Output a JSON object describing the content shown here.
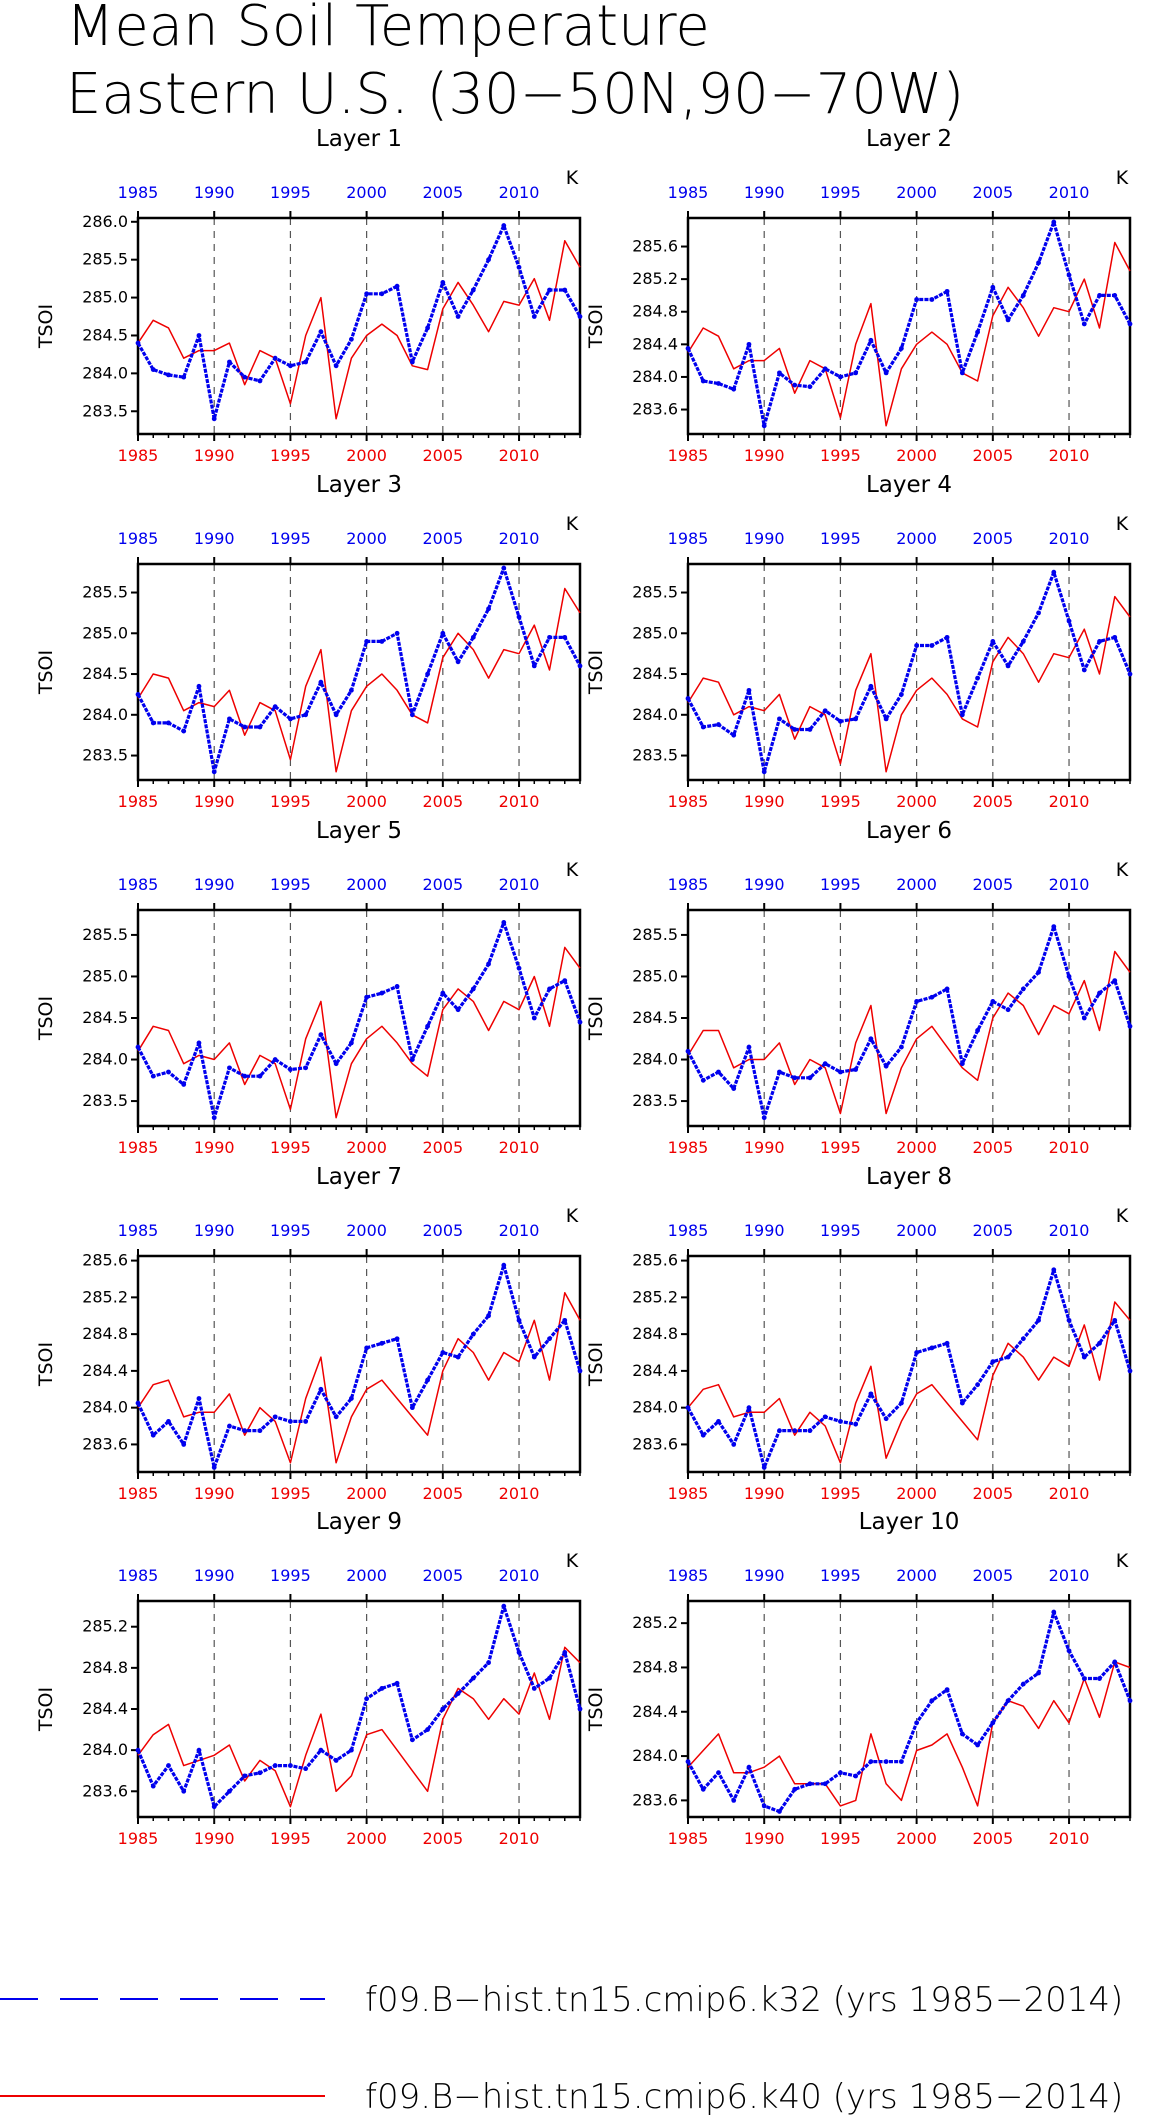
{
  "title_lines": [
    "Mean Soil Temperature",
    "Eastern U.S. (30−50N,90−70W)"
  ],
  "colors": {
    "blue": "#0000ee",
    "red": "#ee0000",
    "axis": "#000000",
    "grid": "#555555"
  },
  "legend": [
    {
      "label": "f09.B−hist.tn15.cmip6.k32 (yrs 1985−2014)",
      "color": "#0000ee",
      "style": "dashed"
    },
    {
      "label": "f09.B−hist.tn15.cmip6.k40 (yrs 1985−2014)",
      "color": "#ee0000",
      "style": "solid"
    }
  ],
  "chart_data": [
    {
      "type": "line",
      "title": "Layer 1",
      "ylabel": "TSOI",
      "unit": "K",
      "xlim": [
        1985,
        2014
      ],
      "x_ticks": [
        1985,
        1990,
        1995,
        2000,
        2005,
        2010
      ],
      "ylim": [
        283.2,
        286.05
      ],
      "y_ticks": [
        283.5,
        284.0,
        284.5,
        285.0,
        285.5,
        286.0
      ],
      "y_tick_labels": [
        "283.5",
        "284.0",
        "284.5",
        "285.0",
        "285.5",
        "286.0"
      ],
      "series": [
        {
          "color": "#0000ee",
          "values": [
            284.4,
            284.05,
            283.98,
            283.95,
            284.5,
            283.4,
            284.15,
            283.95,
            283.9,
            284.2,
            284.1,
            284.15,
            284.55,
            284.1,
            284.45,
            285.05,
            285.05,
            285.15,
            284.15,
            284.6,
            285.2,
            284.75,
            285.1,
            285.5,
            285.95,
            285.4,
            284.75,
            285.1,
            285.1,
            284.75
          ]
        },
        {
          "color": "#ee0000",
          "values": [
            284.4,
            284.7,
            284.6,
            284.2,
            284.3,
            284.3,
            284.4,
            283.85,
            284.3,
            284.2,
            283.6,
            284.5,
            285.0,
            283.4,
            284.2,
            284.5,
            284.65,
            284.5,
            284.1,
            284.05,
            284.85,
            285.2,
            284.9,
            284.55,
            284.95,
            284.9,
            285.25,
            284.7,
            285.75,
            285.4
          ]
        }
      ]
    },
    {
      "type": "line",
      "title": "Layer 2",
      "ylabel": "TSOI",
      "unit": "K",
      "xlim": [
        1985,
        2014
      ],
      "x_ticks": [
        1985,
        1990,
        1995,
        2000,
        2005,
        2010
      ],
      "ylim": [
        283.3,
        285.95
      ],
      "y_ticks": [
        283.6,
        284.0,
        284.4,
        284.8,
        285.2,
        285.6
      ],
      "y_tick_labels": [
        "283.6",
        "284.0",
        "284.4",
        "284.8",
        "285.2",
        "285.6"
      ],
      "series": [
        {
          "color": "#0000ee",
          "values": [
            284.35,
            283.95,
            283.92,
            283.85,
            284.4,
            283.4,
            284.05,
            283.9,
            283.88,
            284.1,
            284.0,
            284.05,
            284.45,
            284.05,
            284.35,
            284.95,
            284.95,
            285.05,
            284.05,
            284.55,
            285.1,
            284.7,
            285.0,
            285.4,
            285.9,
            285.25,
            284.65,
            285.0,
            285.0,
            284.65
          ]
        },
        {
          "color": "#ee0000",
          "values": [
            284.3,
            284.6,
            284.5,
            284.1,
            284.2,
            284.2,
            284.35,
            283.8,
            284.2,
            284.1,
            283.5,
            284.4,
            284.9,
            283.4,
            284.1,
            284.4,
            284.55,
            284.4,
            284.05,
            283.95,
            284.75,
            285.1,
            284.85,
            284.5,
            284.85,
            284.8,
            285.2,
            284.6,
            285.65,
            285.3
          ]
        }
      ]
    },
    {
      "type": "line",
      "title": "Layer 3",
      "ylabel": "TSOI",
      "unit": "K",
      "xlim": [
        1985,
        2014
      ],
      "x_ticks": [
        1985,
        1990,
        1995,
        2000,
        2005,
        2010
      ],
      "ylim": [
        283.2,
        285.85
      ],
      "y_ticks": [
        283.5,
        284.0,
        284.5,
        285.0,
        285.5
      ],
      "y_tick_labels": [
        "283.5",
        "284.0",
        "284.5",
        "285.0",
        "285.5"
      ],
      "series": [
        {
          "color": "#0000ee",
          "values": [
            284.25,
            283.9,
            283.9,
            283.8,
            284.35,
            283.3,
            283.95,
            283.85,
            283.85,
            284.1,
            283.95,
            284.0,
            284.4,
            284.0,
            284.3,
            284.9,
            284.9,
            285.0,
            284.0,
            284.5,
            285.0,
            284.65,
            284.95,
            285.3,
            285.8,
            285.2,
            284.6,
            284.95,
            284.95,
            284.6
          ]
        },
        {
          "color": "#ee0000",
          "values": [
            284.2,
            284.5,
            284.45,
            284.05,
            284.15,
            284.1,
            284.3,
            283.75,
            284.15,
            284.05,
            283.45,
            284.35,
            284.8,
            283.3,
            284.05,
            284.35,
            284.5,
            284.3,
            284.0,
            283.9,
            284.7,
            285.0,
            284.8,
            284.45,
            284.8,
            284.75,
            285.1,
            284.55,
            285.55,
            285.25
          ]
        }
      ]
    },
    {
      "type": "line",
      "title": "Layer 4",
      "ylabel": "TSOI",
      "unit": "K",
      "xlim": [
        1985,
        2014
      ],
      "x_ticks": [
        1985,
        1990,
        1995,
        2000,
        2005,
        2010
      ],
      "ylim": [
        283.2,
        285.85
      ],
      "y_ticks": [
        283.5,
        284.0,
        284.5,
        285.0,
        285.5
      ],
      "y_tick_labels": [
        "283.5",
        "284.0",
        "284.5",
        "285.0",
        "285.5"
      ],
      "series": [
        {
          "color": "#0000ee",
          "values": [
            284.2,
            283.85,
            283.88,
            283.75,
            284.3,
            283.3,
            283.95,
            283.82,
            283.82,
            284.05,
            283.92,
            283.95,
            284.35,
            283.95,
            284.25,
            284.85,
            284.85,
            284.95,
            284.0,
            284.45,
            284.9,
            284.6,
            284.9,
            285.25,
            285.75,
            285.15,
            284.55,
            284.9,
            284.95,
            284.5
          ]
        },
        {
          "color": "#ee0000",
          "values": [
            284.15,
            284.45,
            284.4,
            284.0,
            284.1,
            284.05,
            284.25,
            283.7,
            284.1,
            284.0,
            283.4,
            284.3,
            284.75,
            283.3,
            284.0,
            284.3,
            284.45,
            284.25,
            283.95,
            283.85,
            284.65,
            284.95,
            284.75,
            284.4,
            284.75,
            284.7,
            285.05,
            284.5,
            285.45,
            285.2
          ]
        }
      ]
    },
    {
      "type": "line",
      "title": "Layer 5",
      "ylabel": "TSOI",
      "unit": "K",
      "xlim": [
        1985,
        2014
      ],
      "x_ticks": [
        1985,
        1990,
        1995,
        2000,
        2005,
        2010
      ],
      "ylim": [
        283.2,
        285.8
      ],
      "y_ticks": [
        283.5,
        284.0,
        284.5,
        285.0,
        285.5
      ],
      "y_tick_labels": [
        "283.5",
        "284.0",
        "284.5",
        "285.0",
        "285.5"
      ],
      "series": [
        {
          "color": "#0000ee",
          "values": [
            284.15,
            283.8,
            283.85,
            283.7,
            284.2,
            283.3,
            283.9,
            283.8,
            283.8,
            284.0,
            283.88,
            283.9,
            284.3,
            283.95,
            284.2,
            284.75,
            284.8,
            284.88,
            284.0,
            284.4,
            284.8,
            284.6,
            284.85,
            285.15,
            285.65,
            285.1,
            284.5,
            284.85,
            284.95,
            284.45
          ]
        },
        {
          "color": "#ee0000",
          "values": [
            284.1,
            284.4,
            284.35,
            283.95,
            284.05,
            284.0,
            284.2,
            283.7,
            284.05,
            283.95,
            283.4,
            284.25,
            284.7,
            283.3,
            283.95,
            284.25,
            284.4,
            284.2,
            283.95,
            283.8,
            284.6,
            284.85,
            284.7,
            284.35,
            284.7,
            284.6,
            285.0,
            284.4,
            285.35,
            285.1
          ]
        }
      ]
    },
    {
      "type": "line",
      "title": "Layer 6",
      "ylabel": "TSOI",
      "unit": "K",
      "xlim": [
        1985,
        2014
      ],
      "x_ticks": [
        1985,
        1990,
        1995,
        2000,
        2005,
        2010
      ],
      "ylim": [
        283.2,
        285.8
      ],
      "y_ticks": [
        283.5,
        284.0,
        284.5,
        285.0,
        285.5
      ],
      "y_tick_labels": [
        "283.5",
        "284.0",
        "284.5",
        "285.0",
        "285.5"
      ],
      "series": [
        {
          "color": "#0000ee",
          "values": [
            284.1,
            283.75,
            283.85,
            283.65,
            284.15,
            283.3,
            283.85,
            283.78,
            283.78,
            283.95,
            283.85,
            283.88,
            284.25,
            283.92,
            284.15,
            284.7,
            284.75,
            284.85,
            283.95,
            284.35,
            284.7,
            284.6,
            284.85,
            285.05,
            285.6,
            285.0,
            284.5,
            284.8,
            284.95,
            284.4
          ]
        },
        {
          "color": "#ee0000",
          "values": [
            284.05,
            284.35,
            284.35,
            283.9,
            284.0,
            284.0,
            284.2,
            283.7,
            284.0,
            283.9,
            283.35,
            284.2,
            284.65,
            283.35,
            283.9,
            284.25,
            284.4,
            284.15,
            283.9,
            283.75,
            284.5,
            284.8,
            284.65,
            284.3,
            284.65,
            284.55,
            284.95,
            284.35,
            285.3,
            285.05
          ]
        }
      ]
    },
    {
      "type": "line",
      "title": "Layer 7",
      "ylabel": "TSOI",
      "unit": "K",
      "xlim": [
        1985,
        2014
      ],
      "x_ticks": [
        1985,
        1990,
        1995,
        2000,
        2005,
        2010
      ],
      "ylim": [
        283.3,
        285.65
      ],
      "y_ticks": [
        283.6,
        284.0,
        284.4,
        284.8,
        285.2,
        285.6
      ],
      "y_tick_labels": [
        "283.6",
        "284.0",
        "284.4",
        "284.8",
        "285.2",
        "285.6"
      ],
      "series": [
        {
          "color": "#0000ee",
          "values": [
            284.05,
            283.7,
            283.85,
            283.6,
            284.1,
            283.35,
            283.8,
            283.75,
            283.75,
            283.9,
            283.85,
            283.85,
            284.2,
            283.9,
            284.1,
            284.65,
            284.7,
            284.75,
            284.0,
            284.3,
            284.6,
            284.55,
            284.8,
            285.0,
            285.55,
            284.95,
            284.55,
            284.75,
            284.95,
            284.4
          ]
        },
        {
          "color": "#ee0000",
          "values": [
            284.0,
            284.25,
            284.3,
            283.9,
            283.95,
            283.95,
            284.15,
            283.7,
            284.0,
            283.85,
            283.4,
            284.1,
            284.55,
            283.4,
            283.9,
            284.2,
            284.3,
            284.1,
            283.9,
            283.7,
            284.4,
            284.75,
            284.6,
            284.3,
            284.6,
            284.5,
            284.95,
            284.3,
            285.25,
            284.95
          ]
        }
      ]
    },
    {
      "type": "line",
      "title": "Layer 8",
      "ylabel": "TSOI",
      "unit": "K",
      "xlim": [
        1985,
        2014
      ],
      "x_ticks": [
        1985,
        1990,
        1995,
        2000,
        2005,
        2010
      ],
      "ylim": [
        283.3,
        285.65
      ],
      "y_ticks": [
        283.6,
        284.0,
        284.4,
        284.8,
        285.2,
        285.6
      ],
      "y_tick_labels": [
        "283.6",
        "284.0",
        "284.4",
        "284.8",
        "285.2",
        "285.6"
      ],
      "series": [
        {
          "color": "#0000ee",
          "values": [
            284.0,
            283.7,
            283.85,
            283.6,
            284.0,
            283.35,
            283.75,
            283.75,
            283.75,
            283.9,
            283.85,
            283.82,
            284.15,
            283.88,
            284.05,
            284.6,
            284.65,
            284.7,
            284.05,
            284.25,
            284.5,
            284.55,
            284.75,
            284.95,
            285.5,
            284.95,
            284.55,
            284.7,
            284.95,
            284.4
          ]
        },
        {
          "color": "#ee0000",
          "values": [
            284.0,
            284.2,
            284.25,
            283.9,
            283.95,
            283.95,
            284.1,
            283.7,
            283.95,
            283.8,
            283.4,
            284.05,
            284.45,
            283.45,
            283.85,
            284.15,
            284.25,
            284.05,
            283.85,
            283.65,
            284.35,
            284.7,
            284.55,
            284.3,
            284.55,
            284.45,
            284.9,
            284.3,
            285.15,
            284.95
          ]
        }
      ]
    },
    {
      "type": "line",
      "title": "Layer 9",
      "ylabel": "TSOI",
      "unit": "K",
      "xlim": [
        1985,
        2014
      ],
      "x_ticks": [
        1985,
        1990,
        1995,
        2000,
        2005,
        2010
      ],
      "ylim": [
        283.35,
        285.45
      ],
      "y_ticks": [
        283.6,
        284.0,
        284.4,
        284.8,
        285.2
      ],
      "y_tick_labels": [
        "283.6",
        "284.0",
        "284.4",
        "284.8",
        "285.2"
      ],
      "series": [
        {
          "color": "#0000ee",
          "values": [
            284.0,
            283.65,
            283.85,
            283.6,
            284.0,
            283.45,
            283.6,
            283.75,
            283.78,
            283.85,
            283.85,
            283.82,
            284.0,
            283.9,
            284.0,
            284.5,
            284.6,
            284.65,
            284.1,
            284.2,
            284.4,
            284.55,
            284.7,
            284.85,
            285.4,
            284.95,
            284.6,
            284.7,
            284.95,
            284.4
          ]
        },
        {
          "color": "#ee0000",
          "values": [
            283.95,
            284.15,
            284.25,
            283.85,
            283.9,
            283.95,
            284.05,
            283.7,
            283.9,
            283.8,
            283.45,
            283.95,
            284.35,
            283.6,
            283.75,
            284.15,
            284.2,
            284.0,
            283.8,
            283.6,
            284.3,
            284.6,
            284.5,
            284.3,
            284.5,
            284.35,
            284.75,
            284.3,
            285.0,
            284.85
          ]
        }
      ]
    },
    {
      "type": "line",
      "title": "Layer 10",
      "ylabel": "TSOI",
      "unit": "K",
      "xlim": [
        1985,
        2014
      ],
      "x_ticks": [
        1985,
        1990,
        1995,
        2000,
        2005,
        2010
      ],
      "ylim": [
        283.45,
        285.4
      ],
      "y_ticks": [
        283.6,
        284.0,
        284.4,
        284.8,
        285.2
      ],
      "y_tick_labels": [
        "283.6",
        "284.0",
        "284.4",
        "284.8",
        "285.2"
      ],
      "series": [
        {
          "color": "#0000ee",
          "values": [
            283.95,
            283.7,
            283.85,
            283.6,
            283.9,
            283.55,
            283.5,
            283.7,
            283.75,
            283.75,
            283.85,
            283.82,
            283.95,
            283.95,
            283.95,
            284.3,
            284.5,
            284.6,
            284.2,
            284.1,
            284.3,
            284.5,
            284.65,
            284.75,
            285.3,
            284.95,
            284.7,
            284.7,
            284.85,
            284.5
          ]
        },
        {
          "color": "#ee0000",
          "values": [
            283.9,
            284.05,
            284.2,
            283.85,
            283.85,
            283.9,
            284.0,
            283.75,
            283.75,
            283.75,
            283.55,
            283.6,
            284.2,
            283.75,
            283.6,
            284.05,
            284.1,
            284.2,
            283.9,
            283.55,
            284.3,
            284.5,
            284.45,
            284.25,
            284.5,
            284.3,
            284.7,
            284.35,
            284.85,
            284.8
          ]
        }
      ]
    }
  ]
}
